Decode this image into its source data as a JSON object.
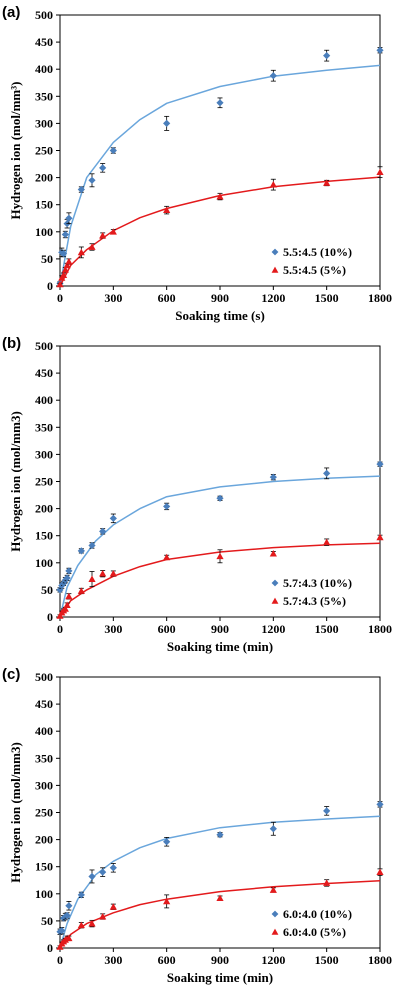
{
  "chart_data": [
    {
      "type": "scatter",
      "panel_label": "(a)",
      "xlabel": "Soaking time (s)",
      "ylabel": "Hydrogen ion (mol/mm³)",
      "xlim": [
        0,
        1800
      ],
      "ylim": [
        0,
        500
      ],
      "xticks": [
        0,
        300,
        600,
        900,
        1200,
        1500,
        1800
      ],
      "yticks": [
        0,
        50,
        100,
        150,
        200,
        250,
        300,
        350,
        400,
        450,
        500
      ],
      "legend_position": "bottom-right",
      "series": [
        {
          "name": "5.5:4.5 (10%)",
          "marker": "diamond",
          "color": "#4a7ebb",
          "x": [
            0,
            10,
            20,
            30,
            40,
            50,
            120,
            180,
            240,
            300,
            600,
            900,
            1200,
            1500,
            1800
          ],
          "y": [
            5,
            62,
            60,
            95,
            115,
            125,
            178,
            195,
            218,
            250,
            300,
            338,
            388,
            425,
            435
          ],
          "err": [
            3,
            8,
            6,
            6,
            8,
            10,
            5,
            12,
            8,
            5,
            13,
            9,
            10,
            10,
            5
          ],
          "fit": [
            [
              0,
              0
            ],
            [
              60,
              110
            ],
            [
              150,
              200
            ],
            [
              300,
              265
            ],
            [
              450,
              307
            ],
            [
              600,
              337
            ],
            [
              900,
              368
            ],
            [
              1200,
              387
            ],
            [
              1500,
              398
            ],
            [
              1800,
              407
            ]
          ]
        },
        {
          "name": "5.5:4.5 (5%)",
          "marker": "triangle",
          "color": "#e31a1c",
          "x": [
            0,
            10,
            20,
            30,
            40,
            50,
            120,
            180,
            240,
            300,
            600,
            900,
            1200,
            1500,
            1800
          ],
          "y": [
            3,
            15,
            20,
            30,
            38,
            45,
            62,
            72,
            93,
            100,
            140,
            165,
            187,
            190,
            210
          ],
          "err": [
            2,
            4,
            4,
            4,
            4,
            5,
            10,
            6,
            5,
            4,
            7,
            6,
            10,
            5,
            10
          ],
          "fit": [
            [
              0,
              0
            ],
            [
              60,
              38
            ],
            [
              150,
              67
            ],
            [
              300,
              102
            ],
            [
              450,
              126
            ],
            [
              600,
              143
            ],
            [
              900,
              167
            ],
            [
              1200,
              183
            ],
            [
              1500,
              193
            ],
            [
              1800,
              201
            ]
          ]
        }
      ]
    },
    {
      "type": "scatter",
      "panel_label": "(b)",
      "xlabel": "Soaking time (min)",
      "ylabel": "Hydrogen ion (mol/mm3)",
      "xlim": [
        0,
        1800
      ],
      "ylim": [
        0,
        500
      ],
      "xticks": [
        0,
        300,
        600,
        900,
        1200,
        1500,
        1800
      ],
      "yticks": [
        0,
        50,
        100,
        150,
        200,
        250,
        300,
        350,
        400,
        450,
        500
      ],
      "legend_position": "bottom-right",
      "series": [
        {
          "name": "5.7:4.3 (10%)",
          "marker": "diamond",
          "color": "#4a7ebb",
          "x": [
            0,
            10,
            20,
            30,
            40,
            50,
            120,
            180,
            240,
            300,
            600,
            900,
            1200,
            1500,
            1800
          ],
          "y": [
            50,
            58,
            62,
            68,
            72,
            85,
            122,
            132,
            158,
            182,
            204,
            219,
            258,
            265,
            282
          ],
          "err": [
            4,
            5,
            4,
            5,
            5,
            5,
            4,
            5,
            5,
            8,
            6,
            4,
            5,
            10,
            4
          ],
          "fit": [
            [
              0,
              0
            ],
            [
              40,
              55
            ],
            [
              100,
              95
            ],
            [
              200,
              140
            ],
            [
              300,
              170
            ],
            [
              450,
              200
            ],
            [
              600,
              222
            ],
            [
              900,
              240
            ],
            [
              1200,
              250
            ],
            [
              1500,
              256
            ],
            [
              1800,
              260
            ]
          ]
        },
        {
          "name": "5.7:4.3 (5%)",
          "marker": "triangle",
          "color": "#e31a1c",
          "x": [
            0,
            10,
            20,
            30,
            40,
            50,
            120,
            180,
            240,
            300,
            600,
            900,
            1200,
            1500,
            1800
          ],
          "y": [
            2,
            8,
            12,
            15,
            22,
            38,
            48,
            70,
            80,
            80,
            110,
            112,
            117,
            138,
            147
          ],
          "err": [
            2,
            3,
            3,
            3,
            4,
            5,
            5,
            14,
            6,
            5,
            4,
            12,
            4,
            6,
            4
          ],
          "fit": [
            [
              0,
              0
            ],
            [
              60,
              30
            ],
            [
              150,
              50
            ],
            [
              300,
              75
            ],
            [
              450,
              93
            ],
            [
              600,
              106
            ],
            [
              900,
              120
            ],
            [
              1200,
              128
            ],
            [
              1500,
              133
            ],
            [
              1800,
              136
            ]
          ]
        }
      ]
    },
    {
      "type": "scatter",
      "panel_label": "(c)",
      "xlabel": "Soaking time (min)",
      "ylabel": "Hydrogen ion (mol/mm3)",
      "xlim": [
        0,
        1800
      ],
      "ylim": [
        0,
        500
      ],
      "xticks": [
        0,
        300,
        600,
        900,
        1200,
        1500,
        1800
      ],
      "yticks": [
        0,
        50,
        100,
        150,
        200,
        250,
        300,
        350,
        400,
        450,
        500
      ],
      "legend_position": "bottom-right",
      "series": [
        {
          "name": "6.0:4.0 (10%)",
          "marker": "diamond",
          "color": "#4a7ebb",
          "x": [
            0,
            10,
            20,
            30,
            40,
            50,
            120,
            180,
            240,
            300,
            600,
            900,
            1200,
            1500,
            1800
          ],
          "y": [
            30,
            32,
            55,
            58,
            60,
            78,
            98,
            132,
            140,
            148,
            196,
            209,
            220,
            253,
            265
          ],
          "err": [
            5,
            6,
            5,
            6,
            5,
            8,
            5,
            12,
            8,
            8,
            8,
            4,
            12,
            8,
            5
          ],
          "fit": [
            [
              0,
              0
            ],
            [
              40,
              45
            ],
            [
              100,
              90
            ],
            [
              200,
              135
            ],
            [
              300,
              160
            ],
            [
              450,
              185
            ],
            [
              600,
              202
            ],
            [
              900,
              222
            ],
            [
              1200,
              232
            ],
            [
              1500,
              238
            ],
            [
              1800,
              243
            ]
          ]
        },
        {
          "name": "6.0:4.0 (5%)",
          "marker": "triangle",
          "color": "#e31a1c",
          "x": [
            0,
            10,
            20,
            30,
            40,
            50,
            120,
            180,
            240,
            300,
            600,
            900,
            1200,
            1500,
            1800
          ],
          "y": [
            2,
            8,
            12,
            15,
            18,
            18,
            42,
            45,
            58,
            76,
            86,
            92,
            107,
            120,
            140
          ],
          "err": [
            2,
            3,
            3,
            3,
            4,
            4,
            5,
            6,
            5,
            5,
            12,
            4,
            4,
            6,
            6
          ],
          "fit": [
            [
              0,
              0
            ],
            [
              60,
              25
            ],
            [
              150,
              45
            ],
            [
              300,
              65
            ],
            [
              450,
              80
            ],
            [
              600,
              90
            ],
            [
              900,
              104
            ],
            [
              1200,
              113
            ],
            [
              1500,
              119
            ],
            [
              1800,
              124
            ]
          ]
        }
      ]
    }
  ]
}
